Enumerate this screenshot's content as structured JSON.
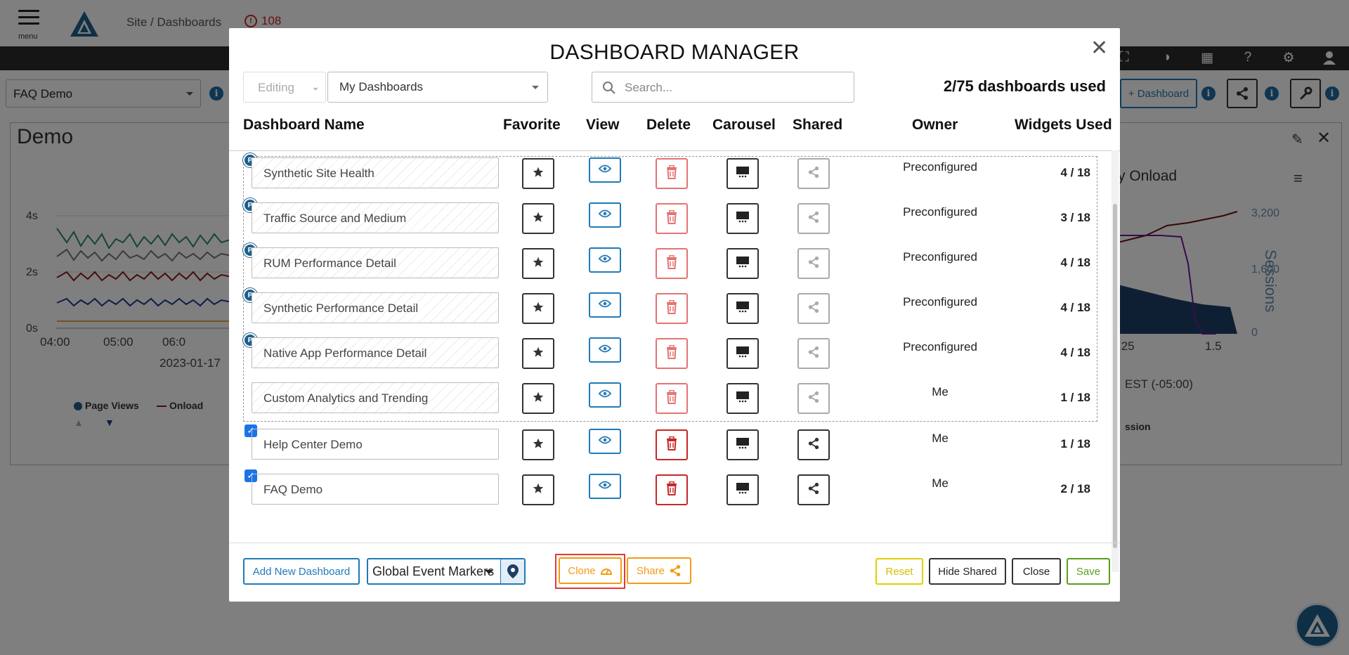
{
  "app": {
    "menu_label": "menu",
    "breadcrumb": "Site / Dashboards",
    "alert_count": "108",
    "current_dashboard": "FAQ Demo",
    "add_dashboard_label": "+ Dashboard",
    "panel_title": "Demo",
    "chart_bg": {
      "y_ticks": [
        "4s",
        "2s",
        "0s"
      ],
      "x_ticks": [
        "04:00",
        "05:00",
        "06:0"
      ],
      "date": "2023-01-17",
      "legend": [
        "Page Views",
        "Onload"
      ],
      "right_title": "y Onload",
      "right_y_ticks": [
        "3,200",
        "1,600",
        "0"
      ],
      "right_axis_label": "Sessions",
      "right_x_ticks": [
        ".25",
        "1.5"
      ],
      "timezone": "EST (-05:00)",
      "legend_right": "ssion"
    }
  },
  "modal": {
    "title": "DASHBOARD MANAGER",
    "mode": "Editing",
    "dashboard_filter": "My Dashboards",
    "search_placeholder": "Search...",
    "usage": "2/75 dashboards used",
    "columns": {
      "name": "Dashboard Name",
      "favorite": "Favorite",
      "view": "View",
      "delete": "Delete",
      "carousel": "Carousel",
      "shared": "Shared",
      "owner": "Owner",
      "widgets": "Widgets Used"
    },
    "rows": [
      {
        "name": "Synthetic Site Health",
        "owner": "Preconfigured",
        "widgets": "4 / 18",
        "badge": "P"
      },
      {
        "name": "Traffic Source and Medium",
        "owner": "Preconfigured",
        "widgets": "3 / 18",
        "badge": "P"
      },
      {
        "name": "RUM Performance Detail",
        "owner": "Preconfigured",
        "widgets": "4 / 18",
        "badge": "P"
      },
      {
        "name": "Synthetic Performance Detail",
        "owner": "Preconfigured",
        "widgets": "4 / 18",
        "badge": "P"
      },
      {
        "name": "Native App Performance Detail",
        "owner": "Preconfigured",
        "widgets": "4 / 18",
        "badge": "P"
      },
      {
        "name": "Custom Analytics and Trending",
        "owner": "Me",
        "widgets": "1 / 18",
        "badge": ""
      },
      {
        "name": "Help Center Demo",
        "owner": "Me",
        "widgets": "1 / 18",
        "badge": "✓"
      },
      {
        "name": "FAQ Demo",
        "owner": "Me",
        "widgets": "2 / 18",
        "badge": "✓"
      }
    ],
    "footer": {
      "add_new": "Add New Dashboard",
      "event_markers": "Global Event Markers",
      "clone": "Clone",
      "share": "Share",
      "reset": "Reset",
      "hide_shared": "Hide Shared",
      "close": "Close",
      "save": "Save"
    }
  },
  "colors": {
    "primary_blue": "#1f7ab8",
    "danger_red": "#c62828",
    "warning_orange": "#f39c12",
    "save_green": "#5a9e1e",
    "reset_yellow": "#e0d000",
    "highlight_red": "#e53935"
  }
}
